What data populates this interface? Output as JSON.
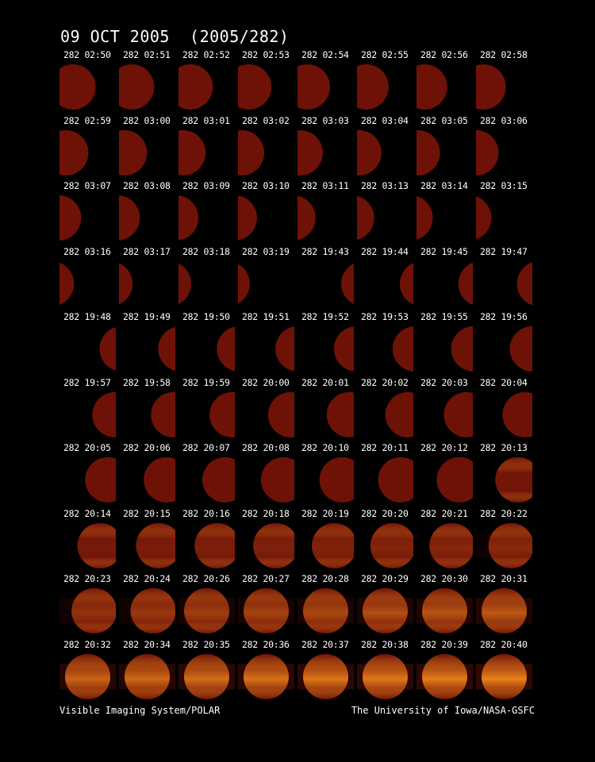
{
  "title": "09 OCT 2005  (2005/282)",
  "footer": {
    "left": "Visible Imaging System/POLAR",
    "right": "The University of Iowa/NASA-GSFC"
  },
  "frames": [
    {
      "label": "282 02:50",
      "phase": "dusk",
      "illum": 0.8,
      "glow": 0.0
    },
    {
      "label": "282 02:51",
      "phase": "dusk",
      "illum": 0.78,
      "glow": 0.0
    },
    {
      "label": "282 02:52",
      "phase": "dusk",
      "illum": 0.76,
      "glow": 0.0
    },
    {
      "label": "282 02:53",
      "phase": "dusk",
      "illum": 0.74,
      "glow": 0.0
    },
    {
      "label": "282 02:54",
      "phase": "dusk",
      "illum": 0.72,
      "glow": 0.0
    },
    {
      "label": "282 02:55",
      "phase": "dusk",
      "illum": 0.7,
      "glow": 0.0
    },
    {
      "label": "282 02:56",
      "phase": "dusk",
      "illum": 0.68,
      "glow": 0.0
    },
    {
      "label": "282 02:58",
      "phase": "dusk",
      "illum": 0.66,
      "glow": 0.0
    },
    {
      "label": "282 02:59",
      "phase": "dusk",
      "illum": 0.64,
      "glow": 0.0
    },
    {
      "label": "282 03:00",
      "phase": "dusk",
      "illum": 0.62,
      "glow": 0.0
    },
    {
      "label": "282 03:01",
      "phase": "dusk",
      "illum": 0.6,
      "glow": 0.0
    },
    {
      "label": "282 03:02",
      "phase": "dusk",
      "illum": 0.58,
      "glow": 0.0
    },
    {
      "label": "282 03:03",
      "phase": "dusk",
      "illum": 0.56,
      "glow": 0.0
    },
    {
      "label": "282 03:04",
      "phase": "dusk",
      "illum": 0.54,
      "glow": 0.0
    },
    {
      "label": "282 03:05",
      "phase": "dusk",
      "illum": 0.52,
      "glow": 0.0
    },
    {
      "label": "282 03:06",
      "phase": "dusk",
      "illum": 0.5,
      "glow": 0.0
    },
    {
      "label": "282 03:07",
      "phase": "dusk",
      "illum": 0.48,
      "glow": 0.0
    },
    {
      "label": "282 03:08",
      "phase": "dusk",
      "illum": 0.46,
      "glow": 0.0
    },
    {
      "label": "282 03:09",
      "phase": "dusk",
      "illum": 0.44,
      "glow": 0.0
    },
    {
      "label": "282 03:10",
      "phase": "dusk",
      "illum": 0.42,
      "glow": 0.0
    },
    {
      "label": "282 03:11",
      "phase": "dusk",
      "illum": 0.4,
      "glow": 0.0
    },
    {
      "label": "282 03:13",
      "phase": "dusk",
      "illum": 0.38,
      "glow": 0.0
    },
    {
      "label": "282 03:14",
      "phase": "dusk",
      "illum": 0.36,
      "glow": 0.0
    },
    {
      "label": "282 03:15",
      "phase": "dusk",
      "illum": 0.34,
      "glow": 0.0
    },
    {
      "label": "282 03:16",
      "phase": "dusk",
      "illum": 0.32,
      "glow": 0.0
    },
    {
      "label": "282 03:17",
      "phase": "dusk",
      "illum": 0.3,
      "glow": 0.0
    },
    {
      "label": "282 03:18",
      "phase": "dusk",
      "illum": 0.28,
      "glow": 0.0
    },
    {
      "label": "282 03:19",
      "phase": "dusk",
      "illum": 0.26,
      "glow": 0.0
    },
    {
      "label": "282 19:43",
      "phase": "dawn",
      "illum": 0.28,
      "glow": 0.0
    },
    {
      "label": "282 19:44",
      "phase": "dawn",
      "illum": 0.3,
      "glow": 0.0
    },
    {
      "label": "282 19:45",
      "phase": "dawn",
      "illum": 0.32,
      "glow": 0.0
    },
    {
      "label": "282 19:47",
      "phase": "dawn",
      "illum": 0.34,
      "glow": 0.0
    },
    {
      "label": "282 19:48",
      "phase": "dawn",
      "illum": 0.36,
      "glow": 0.0
    },
    {
      "label": "282 19:49",
      "phase": "dawn",
      "illum": 0.38,
      "glow": 0.0
    },
    {
      "label": "282 19:50",
      "phase": "dawn",
      "illum": 0.4,
      "glow": 0.0
    },
    {
      "label": "282 19:51",
      "phase": "dawn",
      "illum": 0.42,
      "glow": 0.0
    },
    {
      "label": "282 19:52",
      "phase": "dawn",
      "illum": 0.44,
      "glow": 0.0
    },
    {
      "label": "282 19:53",
      "phase": "dawn",
      "illum": 0.46,
      "glow": 0.0
    },
    {
      "label": "282 19:55",
      "phase": "dawn",
      "illum": 0.48,
      "glow": 0.0
    },
    {
      "label": "282 19:56",
      "phase": "dawn",
      "illum": 0.5,
      "glow": 0.0
    },
    {
      "label": "282 19:57",
      "phase": "dawn",
      "illum": 0.52,
      "glow": 0.0
    },
    {
      "label": "282 19:58",
      "phase": "dawn",
      "illum": 0.54,
      "glow": 0.0
    },
    {
      "label": "282 19:59",
      "phase": "dawn",
      "illum": 0.56,
      "glow": 0.0
    },
    {
      "label": "282 20:00",
      "phase": "dawn",
      "illum": 0.58,
      "glow": 0.0
    },
    {
      "label": "282 20:01",
      "phase": "dawn",
      "illum": 0.6,
      "glow": 0.0
    },
    {
      "label": "282 20:02",
      "phase": "dawn",
      "illum": 0.62,
      "glow": 0.0
    },
    {
      "label": "282 20:03",
      "phase": "dawn",
      "illum": 0.64,
      "glow": 0.0
    },
    {
      "label": "282 20:04",
      "phase": "dawn",
      "illum": 0.66,
      "glow": 0.0
    },
    {
      "label": "282 20:05",
      "phase": "dawn",
      "illum": 0.68,
      "glow": 0.0
    },
    {
      "label": "282 20:06",
      "phase": "dawn",
      "illum": 0.7,
      "glow": 0.0
    },
    {
      "label": "282 20:07",
      "phase": "dawn",
      "illum": 0.72,
      "glow": 0.0
    },
    {
      "label": "282 20:08",
      "phase": "dawn",
      "illum": 0.74,
      "glow": 0.0
    },
    {
      "label": "282 20:10",
      "phase": "dawn",
      "illum": 0.76,
      "glow": 0.0
    },
    {
      "label": "282 20:11",
      "phase": "dawn",
      "illum": 0.78,
      "glow": 0.0
    },
    {
      "label": "282 20:12",
      "phase": "dawn",
      "illum": 0.8,
      "glow": 0.0
    },
    {
      "label": "282 20:13",
      "phase": "dawn",
      "illum": 0.82,
      "glow": 0.05
    },
    {
      "label": "282 20:14",
      "phase": "dawn",
      "illum": 0.85,
      "glow": 0.08
    },
    {
      "label": "282 20:15",
      "phase": "dawn",
      "illum": 0.87,
      "glow": 0.1
    },
    {
      "label": "282 20:16",
      "phase": "dawn",
      "illum": 0.89,
      "glow": 0.12
    },
    {
      "label": "282 20:18",
      "phase": "dawn",
      "illum": 0.91,
      "glow": 0.14
    },
    {
      "label": "282 20:19",
      "phase": "dawn",
      "illum": 0.93,
      "glow": 0.16
    },
    {
      "label": "282 20:20",
      "phase": "dawn",
      "illum": 0.95,
      "glow": 0.18
    },
    {
      "label": "282 20:21",
      "phase": "dawn",
      "illum": 0.96,
      "glow": 0.2
    },
    {
      "label": "282 20:22",
      "phase": "dawn",
      "illum": 0.97,
      "glow": 0.22
    },
    {
      "label": "282 20:23",
      "phase": "dawn",
      "illum": 0.98,
      "glow": 0.3
    },
    {
      "label": "282 20:24",
      "phase": "dawn",
      "illum": 0.99,
      "glow": 0.35
    },
    {
      "label": "282 20:26",
      "phase": "dawn",
      "illum": 1.0,
      "glow": 0.4
    },
    {
      "label": "282 20:27",
      "phase": "dawn",
      "illum": 1.0,
      "glow": 0.45
    },
    {
      "label": "282 20:28",
      "phase": "dawn",
      "illum": 1.0,
      "glow": 0.5
    },
    {
      "label": "282 20:29",
      "phase": "dawn",
      "illum": 1.0,
      "glow": 0.55
    },
    {
      "label": "282 20:30",
      "phase": "dawn",
      "illum": 1.0,
      "glow": 0.6
    },
    {
      "label": "282 20:31",
      "phase": "dawn",
      "illum": 1.0,
      "glow": 0.65
    },
    {
      "label": "282 20:32",
      "phase": "dawn",
      "illum": 1.0,
      "glow": 0.75
    },
    {
      "label": "282 20:34",
      "phase": "dawn",
      "illum": 1.0,
      "glow": 0.78
    },
    {
      "label": "282 20:35",
      "phase": "dawn",
      "illum": 1.0,
      "glow": 0.82
    },
    {
      "label": "282 20:36",
      "phase": "dawn",
      "illum": 1.0,
      "glow": 0.86
    },
    {
      "label": "282 20:37",
      "phase": "dawn",
      "illum": 1.0,
      "glow": 0.9
    },
    {
      "label": "282 20:38",
      "phase": "dawn",
      "illum": 1.0,
      "glow": 0.93
    },
    {
      "label": "282 20:39",
      "phase": "dawn",
      "illum": 1.0,
      "glow": 0.96
    },
    {
      "label": "282 20:40",
      "phase": "dawn",
      "illum": 1.0,
      "glow": 1.0
    }
  ],
  "colors": {
    "background": "#000000",
    "disk": "#6e1208",
    "glow": "#e8801a",
    "text": "#ffffff"
  }
}
